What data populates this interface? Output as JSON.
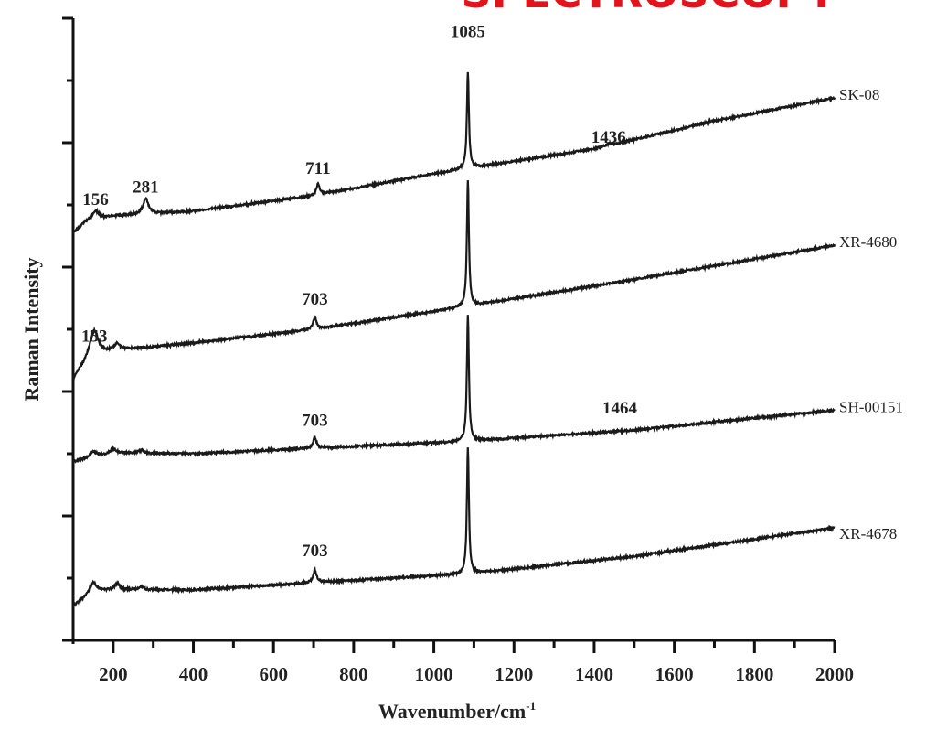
{
  "banner": "SPECTROSCOPY",
  "chart_data": {
    "type": "line",
    "title": "",
    "xlabel": "Wavenumber/cm",
    "xlabel_superscript": "-1",
    "ylabel": "Raman Intensity",
    "xlim": [
      100,
      2000
    ],
    "ylim": [
      0,
      10
    ],
    "xticks": [
      200,
      400,
      600,
      800,
      1000,
      1200,
      1400,
      1600,
      1800,
      2000
    ],
    "y_tick_labels_shown": false,
    "grid": false,
    "line_color": "#1a1a1a",
    "series": [
      {
        "name": "SK-08",
        "baseline": [
          [
            100,
            6.55
          ],
          [
            130,
            6.72
          ],
          [
            200,
            6.82
          ],
          [
            400,
            6.9
          ],
          [
            700,
            7.15
          ],
          [
            1000,
            7.5
          ],
          [
            1400,
            7.9
          ],
          [
            1700,
            8.35
          ],
          [
            2000,
            8.72
          ]
        ],
        "peaks": [
          [
            156,
            0.15,
            10
          ],
          [
            281,
            0.25,
            8
          ],
          [
            711,
            0.18,
            5
          ],
          [
            1085,
            1.55,
            3
          ],
          [
            1436,
            0.03,
            8
          ]
        ]
      },
      {
        "name": "XR-4680",
        "baseline": [
          [
            100,
            4.2
          ],
          [
            140,
            4.55
          ],
          [
            200,
            4.66
          ],
          [
            400,
            4.78
          ],
          [
            700,
            5.0
          ],
          [
            1085,
            5.37
          ],
          [
            1500,
            5.8
          ],
          [
            2000,
            6.35
          ]
        ],
        "peaks": [
          [
            153,
            0.4,
            12
          ],
          [
            210,
            0.1,
            8
          ],
          [
            703,
            0.2,
            5
          ],
          [
            1085,
            2.03,
            3
          ]
        ]
      },
      {
        "name": "SH-00151",
        "baseline": [
          [
            100,
            2.87
          ],
          [
            200,
            3.01
          ],
          [
            400,
            3.0
          ],
          [
            703,
            3.09
          ],
          [
            1085,
            3.2
          ],
          [
            1500,
            3.38
          ],
          [
            2000,
            3.7
          ]
        ],
        "peaks": [
          [
            150,
            0.1,
            10
          ],
          [
            200,
            0.07,
            8
          ],
          [
            270,
            0.05,
            8
          ],
          [
            703,
            0.18,
            5
          ],
          [
            1085,
            2.04,
            3
          ]
        ]
      },
      {
        "name": "XR-4678",
        "baseline": [
          [
            100,
            0.55
          ],
          [
            150,
            0.78
          ],
          [
            200,
            0.81
          ],
          [
            400,
            0.81
          ],
          [
            703,
            0.93
          ],
          [
            1085,
            1.07
          ],
          [
            1500,
            1.35
          ],
          [
            2000,
            1.81
          ]
        ],
        "peaks": [
          [
            150,
            0.15,
            10
          ],
          [
            210,
            0.1,
            8
          ],
          [
            270,
            0.05,
            8
          ],
          [
            703,
            0.2,
            5
          ],
          [
            1085,
            2.04,
            3
          ]
        ]
      }
    ],
    "annotations": [
      {
        "text": "1085",
        "x": 1085,
        "y": 9.7
      },
      {
        "text": "1436",
        "x": 1436,
        "y": 8.0
      },
      {
        "text": "711",
        "x": 711,
        "y": 7.5
      },
      {
        "text": "281",
        "x": 281,
        "y": 7.2
      },
      {
        "text": "156",
        "x": 156,
        "y": 7.0
      },
      {
        "text": "703",
        "x": 703,
        "y": 5.4
      },
      {
        "text": "153",
        "x": 153,
        "y": 4.8
      },
      {
        "text": "703",
        "x": 703,
        "y": 3.45
      },
      {
        "text": "1464",
        "x": 1464,
        "y": 3.65
      },
      {
        "text": "703",
        "x": 703,
        "y": 1.35
      }
    ]
  }
}
